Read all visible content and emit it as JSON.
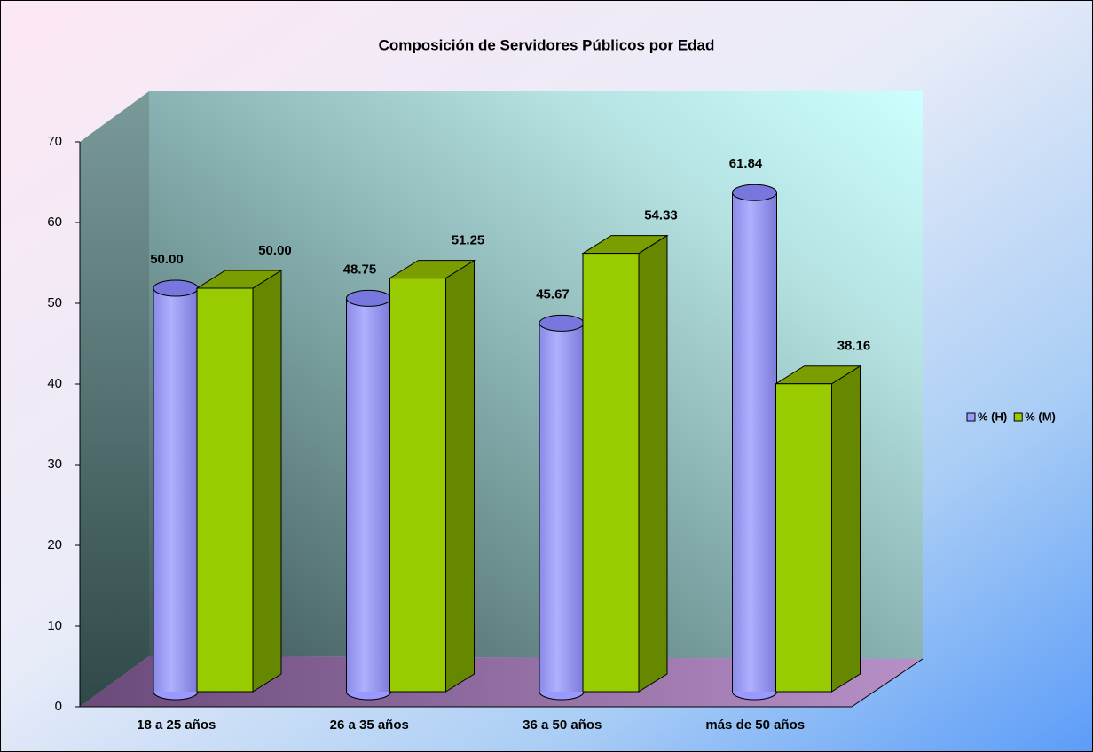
{
  "chart_data": {
    "type": "bar3d",
    "title": "Composición de Servidores Públicos por Edad",
    "categories": [
      "18 a 25 años",
      "26 a 35 años",
      "36 a 50 años",
      "más de 50 años"
    ],
    "series": [
      {
        "name": "% (H)",
        "color": "#9999ff",
        "values": [
          50.0,
          48.75,
          45.67,
          61.84
        ],
        "value_labels": [
          "50.00",
          "48.75",
          "45.67",
          "61.84"
        ]
      },
      {
        "name": "% (M)",
        "color": "#99cc00",
        "values": [
          50.0,
          51.25,
          54.33,
          38.16
        ],
        "value_labels": [
          "50.00",
          "51.25",
          "54.33",
          "38.16"
        ]
      }
    ],
    "ylim": [
      0,
      70
    ],
    "yticks": [
      0,
      10,
      20,
      30,
      40,
      50,
      60,
      70
    ],
    "legend": "right"
  }
}
